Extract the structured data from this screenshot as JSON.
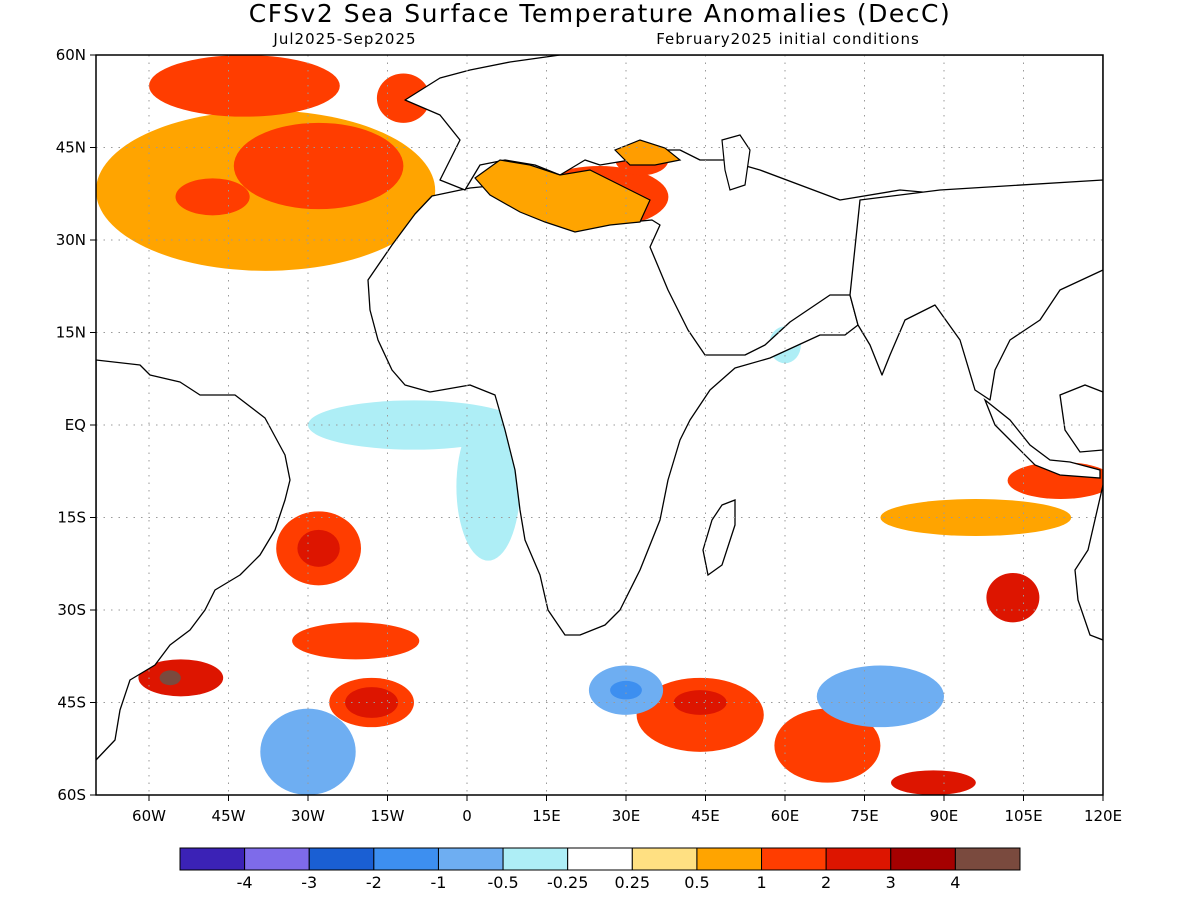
{
  "chart_data": {
    "type": "heatmap",
    "title": "CFSv2 Sea Surface Temperature Anomalies (DecC)",
    "subtitle_left": "Jul2025-Sep2025",
    "subtitle_right": "February2025 initial conditions",
    "xlim": [
      -70,
      120
    ],
    "ylim": [
      -60,
      60
    ],
    "grid": true,
    "x_ticks": [
      {
        "value": -60,
        "label": "60W"
      },
      {
        "value": -45,
        "label": "45W"
      },
      {
        "value": -30,
        "label": "30W"
      },
      {
        "value": -15,
        "label": "15W"
      },
      {
        "value": 0,
        "label": "0"
      },
      {
        "value": 15,
        "label": "15E"
      },
      {
        "value": 30,
        "label": "30E"
      },
      {
        "value": 45,
        "label": "45E"
      },
      {
        "value": 60,
        "label": "60E"
      },
      {
        "value": 75,
        "label": "75E"
      },
      {
        "value": 90,
        "label": "90E"
      },
      {
        "value": 105,
        "label": "105E"
      },
      {
        "value": 120,
        "label": "120E"
      }
    ],
    "y_ticks": [
      {
        "value": 60,
        "label": "60N"
      },
      {
        "value": 45,
        "label": "45N"
      },
      {
        "value": 30,
        "label": "30N"
      },
      {
        "value": 15,
        "label": "15N"
      },
      {
        "value": 0,
        "label": "EQ"
      },
      {
        "value": -15,
        "label": "15S"
      },
      {
        "value": -30,
        "label": "30S"
      },
      {
        "value": -45,
        "label": "45S"
      },
      {
        "value": -60,
        "label": "60S"
      }
    ],
    "colorbar": {
      "colors": [
        "#3b22b6",
        "#7e6bea",
        "#1a5fd3",
        "#3d8ff0",
        "#6eaef2",
        "#aeeef6",
        "#ffffff",
        "#ffe082",
        "#ffa400",
        "#ff3d00",
        "#dd1500",
        "#a50000",
        "#7a4a3e"
      ],
      "labels": [
        "-4",
        "-3",
        "-2",
        "-1",
        "-0.5",
        "-0.25",
        "0.25",
        "0.5",
        "1",
        "2",
        "3",
        "4"
      ]
    },
    "anomaly_regions": [
      {
        "lon": -38,
        "lat": 38,
        "rlon": 32,
        "rlat": 13,
        "value": 0.5
      },
      {
        "lon": -28,
        "lat": 42,
        "rlon": 16,
        "rlat": 7,
        "value": 1.0
      },
      {
        "lon": -48,
        "lat": 37,
        "rlon": 7,
        "rlat": 3,
        "value": 1.0
      },
      {
        "lon": -42,
        "lat": 55,
        "rlon": 18,
        "rlat": 5,
        "value": 1.0
      },
      {
        "lon": -12,
        "lat": 53,
        "rlon": 5,
        "rlat": 4,
        "value": 1.0
      },
      {
        "lon": 25,
        "lat": 37,
        "rlon": 13,
        "rlat": 5,
        "value": 1.0
      },
      {
        "lon": 33,
        "lat": 43,
        "rlon": 5,
        "rlat": 2.5,
        "value": 1.0
      },
      {
        "lon": 112,
        "lat": -9,
        "rlon": 10,
        "rlat": 3,
        "value": 1.0
      },
      {
        "lon": 96,
        "lat": -15,
        "rlon": 18,
        "rlat": 3,
        "value": 0.5
      },
      {
        "lon": -28,
        "lat": -20,
        "rlon": 8,
        "rlat": 6,
        "value": 1.0
      },
      {
        "lon": -28,
        "lat": -20,
        "rlon": 4,
        "rlat": 3,
        "value": 2.0
      },
      {
        "lon": -21,
        "lat": -35,
        "rlon": 12,
        "rlat": 3,
        "value": 1.0
      },
      {
        "lon": -54,
        "lat": -41,
        "rlon": 8,
        "rlat": 3,
        "value": 2.0
      },
      {
        "lon": -56,
        "lat": -41,
        "rlon": 2,
        "rlat": 1.2,
        "value": 4.0
      },
      {
        "lon": -18,
        "lat": -45,
        "rlon": 8,
        "rlat": 4,
        "value": 1.0
      },
      {
        "lon": -18,
        "lat": -45,
        "rlon": 5,
        "rlat": 2.5,
        "value": 2.0
      },
      {
        "lon": 44,
        "lat": -47,
        "rlon": 12,
        "rlat": 6,
        "value": 1.0
      },
      {
        "lon": 44,
        "lat": -45,
        "rlon": 5,
        "rlat": 2,
        "value": 2.0
      },
      {
        "lon": 68,
        "lat": -52,
        "rlon": 10,
        "rlat": 6,
        "value": 1.0
      },
      {
        "lon": 88,
        "lat": -58,
        "rlon": 8,
        "rlat": 2,
        "value": 2.0
      },
      {
        "lon": 103,
        "lat": -28,
        "rlon": 5,
        "rlat": 4,
        "value": 2.0
      },
      {
        "lon": -10,
        "lat": 0,
        "rlon": 20,
        "rlat": 4,
        "value": -0.5
      },
      {
        "lon": 4,
        "lat": -10,
        "rlon": 6,
        "rlat": 12,
        "value": -0.5
      },
      {
        "lon": 30,
        "lat": -43,
        "rlon": 7,
        "rlat": 4,
        "value": -1.0
      },
      {
        "lon": 30,
        "lat": -43,
        "rlon": 3,
        "rlat": 1.5,
        "value": -2.0
      },
      {
        "lon": -30,
        "lat": -53,
        "rlon": 9,
        "rlat": 7,
        "value": -1.0
      },
      {
        "lon": 78,
        "lat": -44,
        "rlon": 12,
        "rlat": 5,
        "value": -1.0
      },
      {
        "lon": 58,
        "lat": 12,
        "rlon": 8,
        "rlat": 6,
        "value": -0.25
      },
      {
        "lon": 60,
        "lat": 13,
        "rlon": 3,
        "rlat": 3,
        "value": -0.5
      }
    ]
  }
}
